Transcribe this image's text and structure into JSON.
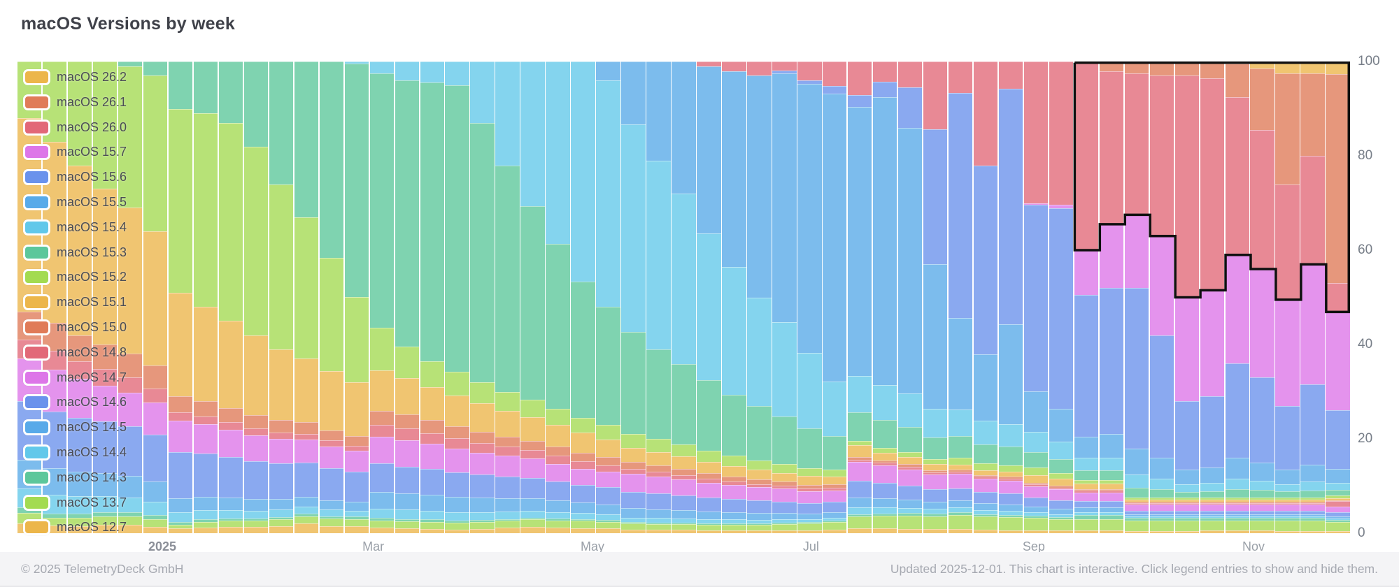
{
  "page": {
    "title": "macOS Versions by week"
  },
  "footer": {
    "copyright": "© 2025 TelemetryDeck GmbH",
    "updated_note": "Updated 2025-12-01. This chart is interactive. Click legend entries to show and hide them."
  },
  "palette": {
    "gold": "#ECB64A",
    "orange": "#E07B58",
    "red": "#E26878",
    "magenta": "#DD76E8",
    "blue": "#6A92EC",
    "blue2": "#58AAE9",
    "cyan": "#62C8EA",
    "teal": "#5CC79B",
    "lime": "#A3DB51"
  },
  "chart_data": {
    "type": "bar",
    "stacking": "percent",
    "title": "macOS Versions by week",
    "x_unit": "week",
    "n_bars": 53,
    "ylim": [
      0,
      100
    ],
    "y_ticks": [
      100,
      80,
      60,
      40,
      20,
      0
    ],
    "y_axis_side": "right",
    "grid": false,
    "legend_position": "overlay-top-left",
    "x_ticks": [
      {
        "label": "2025",
        "pos": 5.76,
        "emphasis": true
      },
      {
        "label": "Mar",
        "pos": 14.15,
        "emphasis": false
      },
      {
        "label": "May",
        "pos": 22.87,
        "emphasis": false
      },
      {
        "label": "Jul",
        "pos": 31.56,
        "emphasis": false
      },
      {
        "label": "Sep",
        "pos": 40.42,
        "emphasis": false
      },
      {
        "label": "Nov",
        "pos": 49.16,
        "emphasis": false
      }
    ],
    "series": [
      {
        "name": "macOS 26.2",
        "color": "gold",
        "values": [
          0,
          0,
          0,
          0,
          0,
          0,
          0,
          0,
          0,
          0,
          0,
          0,
          0,
          0,
          0,
          0,
          0,
          0,
          0,
          0,
          0,
          0,
          0,
          0,
          0,
          0,
          0,
          0,
          0,
          0,
          0,
          0,
          0,
          0,
          0,
          0,
          0,
          0,
          0,
          0,
          0,
          0,
          0,
          0,
          0,
          0,
          0,
          0,
          0.5,
          1.5,
          2.5,
          2.5,
          2.7
        ]
      },
      {
        "name": "macOS 26.1",
        "color": "orange",
        "values": [
          0,
          0,
          0,
          0,
          0,
          0,
          0,
          0,
          0,
          0,
          0,
          0,
          0,
          0,
          0,
          0,
          0,
          0,
          0,
          0,
          0,
          0,
          0,
          0,
          0,
          0,
          0,
          0,
          0,
          0,
          0,
          0,
          0,
          0,
          0,
          0,
          0,
          0,
          0,
          0,
          0,
          0,
          0,
          2,
          2.5,
          3,
          3,
          3.5,
          7,
          13,
          23.5,
          17.5,
          44.4
        ]
      },
      {
        "name": "macOS 26.0",
        "color": "red",
        "values": [
          0,
          0,
          0,
          0,
          0,
          0,
          0,
          0,
          0,
          0,
          0,
          0,
          0,
          0,
          0,
          0,
          0,
          0,
          0,
          0,
          0,
          0,
          0,
          0,
          0,
          0,
          0,
          1,
          2,
          3,
          2,
          4,
          5,
          7,
          4,
          5,
          14,
          6.5,
          22,
          5.5,
          28,
          28.5,
          40,
          32.5,
          30,
          34,
          47,
          45,
          33.5,
          29.5,
          24.5,
          23,
          6
        ]
      },
      {
        "name": "macOS 15.7",
        "color": "magenta",
        "values": [
          0,
          0,
          0,
          0,
          0,
          0,
          0,
          0,
          0,
          0,
          0,
          0,
          0,
          0,
          0,
          0,
          0,
          0,
          0,
          0,
          0,
          0,
          0,
          0,
          0,
          0,
          0,
          0,
          0,
          0,
          0,
          0,
          0,
          0,
          0,
          0,
          0,
          0,
          0,
          0,
          0.3,
          0.7,
          9.5,
          13.5,
          15.5,
          21,
          22,
          22.5,
          23,
          23,
          22.5,
          25.5,
          21.1
        ]
      },
      {
        "name": "macOS 15.6",
        "color": "blue",
        "values": [
          0,
          0,
          0,
          0,
          0,
          0,
          0,
          0,
          0,
          0,
          0,
          0,
          0,
          0,
          0,
          0,
          0,
          0,
          0,
          0,
          0,
          0,
          0,
          0,
          0,
          0,
          0,
          0,
          0,
          0,
          0.5,
          0.8,
          1.5,
          2.5,
          3,
          8,
          28,
          46.5,
          40,
          47,
          37,
          40,
          30,
          31,
          34,
          26,
          14.5,
          15,
          20,
          18,
          13.5,
          17,
          12.5
        ]
      },
      {
        "name": "macOS 15.5",
        "color": "blue2",
        "values": [
          0,
          0,
          0,
          0,
          0,
          0,
          0,
          0,
          0,
          0,
          0,
          0,
          0,
          0,
          0,
          0,
          0,
          0,
          0,
          0,
          0,
          0,
          0,
          4,
          13.4,
          21,
          28,
          35.5,
          41.6,
          47,
          52.8,
          57,
          58.5,
          56.7,
          57,
          52,
          30,
          19,
          14,
          20,
          8,
          6.5,
          4.5,
          5,
          5.5,
          4.5,
          3.2,
          3.4,
          4.4,
          3.9,
          3.1,
          3.6,
          3
        ]
      },
      {
        "name": "macOS 15.4",
        "color": "cyan",
        "values": [
          0,
          0,
          0,
          0,
          0,
          0,
          0,
          0,
          0,
          0,
          0,
          0,
          0,
          0.5,
          2.5,
          4,
          4.5,
          5,
          13,
          22,
          30.7,
          38.7,
          46.6,
          48,
          44,
          40,
          36,
          31,
          27,
          23,
          20,
          16,
          11,
          7.7,
          7,
          6.5,
          6,
          5.5,
          5,
          4.5,
          4,
          3.5,
          2.7,
          2.6,
          2.8,
          2.2,
          1.6,
          1.7,
          2.2,
          1.9,
          1.5,
          1.8,
          1.5
        ]
      },
      {
        "name": "macOS 15.3",
        "color": "teal",
        "values": [
          0,
          0,
          0,
          0,
          1,
          3,
          10,
          11,
          13,
          18,
          26,
          33,
          41.5,
          49.5,
          54,
          56.4,
          59,
          60.8,
          55,
          48,
          41,
          35,
          29,
          25,
          21.5,
          19,
          17,
          15,
          13,
          11.5,
          10,
          8.5,
          6.8,
          6,
          5.5,
          5,
          4.5,
          4.5,
          4,
          3.8,
          3,
          2.8,
          2,
          2.1,
          2.1,
          1.7,
          1.1,
          1.3,
          1.8,
          1.6,
          1.3,
          1.5,
          1.2
        ]
      },
      {
        "name": "macOS 15.2",
        "color": "lime",
        "values": [
          12,
          17,
          22,
          27,
          30,
          33,
          39,
          41,
          42,
          40,
          35,
          30,
          24,
          18,
          9,
          6.7,
          5.5,
          5,
          4.5,
          4,
          3.7,
          3.4,
          3.1,
          3,
          3,
          2.8,
          2.6,
          2.4,
          2.2,
          2,
          1.9,
          1.7,
          1.4,
          1,
          1,
          0.9,
          0.9,
          1.5,
          1.5,
          1.2,
          1.5,
          1.2,
          0.8,
          0.8,
          0.5,
          0.5,
          0.5,
          0.5,
          0.5,
          0.5,
          0.5,
          0.5,
          0.5
        ]
      },
      {
        "name": "macOS 15.1",
        "color": "gold",
        "values": [
          41,
          38.4,
          36,
          33,
          31,
          28.5,
          22,
          20,
          18.5,
          17,
          15,
          13.5,
          12.5,
          11.5,
          8.5,
          7.7,
          7,
          6.5,
          6,
          5.5,
          5,
          4.6,
          4.2,
          3.8,
          3,
          2.8,
          2.6,
          2.4,
          2.2,
          2,
          1.9,
          1.8,
          1.6,
          2.5,
          1.5,
          1.4,
          1.3,
          1,
          1,
          1,
          1.5,
          1.4,
          1.2,
          1.2,
          0.5,
          0.5,
          0.5,
          0.5,
          0.5,
          0.5,
          0.5,
          0.5,
          0.5
        ]
      },
      {
        "name": "macOS 15.0",
        "color": "orange",
        "values": [
          6,
          6,
          5.5,
          5.2,
          5,
          4.8,
          3.4,
          3.2,
          3,
          2.8,
          2.6,
          2.4,
          2.2,
          2,
          3,
          3,
          2.8,
          2.6,
          2.4,
          2.2,
          2,
          1.9,
          1.8,
          1.7,
          1.5,
          1.4,
          1.3,
          1.2,
          1.1,
          1,
          0.9,
          0.8,
          0.7,
          0.5,
          0.5,
          0.5,
          0.5,
          0.4,
          0.4,
          0.4,
          0.3,
          0.3,
          0.3,
          0.3,
          0.2,
          0.2,
          0.2,
          0.2,
          0.2,
          0.2,
          0.2,
          0.2,
          0.2
        ]
      },
      {
        "name": "macOS 14.8",
        "color": "red",
        "values": [
          4,
          4,
          3.8,
          3.5,
          3.2,
          3,
          1.8,
          1.7,
          1.6,
          1.5,
          1.4,
          1.3,
          1.2,
          1.1,
          2.5,
          2.5,
          2.3,
          2.2,
          2,
          1.9,
          1.8,
          1.7,
          1.6,
          1.4,
          1,
          1,
          0.9,
          0.8,
          0.7,
          0.7,
          0.6,
          0.6,
          0.5,
          0.5,
          0.5,
          0.5,
          0.5,
          0.4,
          0.4,
          0.4,
          0.4,
          0.4,
          0.4,
          0.4,
          0.4,
          0.4,
          0.4,
          0.4,
          0.4,
          0.4,
          0.4,
          0.4,
          1.2
        ]
      },
      {
        "name": "macOS 14.7",
        "color": "magenta",
        "values": [
          9,
          8.8,
          8.2,
          7.6,
          7.2,
          6.8,
          6.6,
          6.2,
          5.8,
          5.5,
          5.2,
          4.9,
          4.6,
          4.4,
          5.7,
          5.6,
          5.3,
          5,
          4.7,
          4.4,
          4.1,
          3.8,
          3.5,
          3.3,
          3.8,
          3.6,
          3.4,
          3.2,
          3,
          2.8,
          2.7,
          2.5,
          2.3,
          4,
          3.5,
          3.2,
          3,
          3,
          2.8,
          2.6,
          2.2,
          2.1,
          1.8,
          1.8,
          1.2,
          1.2,
          1.2,
          1.2,
          1.2,
          1.2,
          1.2,
          1.2,
          1.2
        ]
      },
      {
        "name": "macOS 14.6",
        "color": "blue",
        "values": [
          12.5,
          12,
          11.5,
          11,
          10.5,
          10,
          9.8,
          9.2,
          8.6,
          8,
          7.6,
          7.2,
          6.8,
          6.4,
          6,
          5.6,
          5.4,
          5.2,
          4.9,
          4.6,
          4.3,
          4,
          3.7,
          3.6,
          3.5,
          3.3,
          3.1,
          2.9,
          2.7,
          2.6,
          2.4,
          2.2,
          2.1,
          3.5,
          3,
          2.8,
          2.6,
          2.5,
          2.4,
          2.2,
          1.8,
          1.7,
          1.4,
          1.4,
          0.8,
          0.8,
          0.8,
          0.8,
          0.8,
          0.8,
          0.8,
          0.8,
          0.8
        ]
      },
      {
        "name": "macOS 14.5",
        "color": "blue2",
        "values": [
          6,
          5.6,
          5.2,
          4.8,
          4.5,
          4.2,
          3,
          2.8,
          2.6,
          2.4,
          2.2,
          2.1,
          2,
          1.9,
          3.6,
          3.5,
          3.4,
          3.2,
          3,
          2.8,
          2.6,
          2.4,
          2.2,
          2.1,
          2,
          1.9,
          1.8,
          1.7,
          1.6,
          1.5,
          1.4,
          1.3,
          1.2,
          2,
          1.8,
          1.6,
          1.5,
          1.5,
          1.4,
          1.3,
          1.2,
          1.1,
          1,
          1,
          0.5,
          0.5,
          0.5,
          0.5,
          0.5,
          0.5,
          0.5,
          0.5,
          0.5
        ]
      },
      {
        "name": "macOS 14.4",
        "color": "cyan",
        "values": [
          4,
          4,
          3.6,
          3.4,
          3.1,
          2.8,
          2,
          1.9,
          1.8,
          1.7,
          1.6,
          1.5,
          1.4,
          1.3,
          2,
          2,
          1.9,
          1.8,
          1.7,
          1.6,
          1.5,
          1.4,
          1.3,
          1.2,
          1,
          1,
          0.9,
          0.8,
          0.8,
          0.7,
          0.7,
          0.6,
          0.6,
          1.5,
          1.2,
          1,
          1,
          1,
          0.9,
          0.8,
          0.7,
          0.6,
          0.6,
          0.6,
          0.3,
          0.3,
          0.3,
          0.3,
          0.3,
          0.3,
          0.3,
          0.3,
          0.3
        ]
      },
      {
        "name": "macOS 14.3",
        "color": "teal",
        "values": [
          1.2,
          1,
          1,
          1,
          0.9,
          0.9,
          0.6,
          0.6,
          0.5,
          0.5,
          0.5,
          0.5,
          0.5,
          0.5,
          0.5,
          0.5,
          0.5,
          0.5,
          0.5,
          0.4,
          0.4,
          0.4,
          0.4,
          0.4,
          0.3,
          0.3,
          0.3,
          0.3,
          0.3,
          0.3,
          0.3,
          0.3,
          0.3,
          0.5,
          0.5,
          0.5,
          0.5,
          0.5,
          0.5,
          0.4,
          0.4,
          0.4,
          0.8,
          0.8,
          0.5,
          0.5,
          0.5,
          0.5,
          0.5,
          0.5,
          0.5,
          0.5,
          0.5
        ]
      },
      {
        "name": "macOS 13.7",
        "color": "lime",
        "values": [
          2.2,
          1.6,
          1.7,
          1.8,
          1.9,
          1.6,
          0.8,
          1.2,
          1.3,
          1.3,
          1.4,
          1.6,
          1.6,
          1.5,
          1.5,
          1.5,
          1.5,
          1.4,
          1.4,
          1.4,
          1.6,
          1.5,
          1.5,
          1.4,
          1.2,
          1.2,
          1.2,
          1.2,
          1.2,
          1.2,
          1.3,
          1.4,
          1.5,
          2.5,
          2.5,
          2.6,
          2.7,
          3,
          2.8,
          2.6,
          2.4,
          2.3,
          2.4,
          2.4,
          2.2,
          2.2,
          2.2,
          2.2,
          2.2,
          2.2,
          2.2,
          2.2,
          1.8
        ]
      },
      {
        "name": "macOS 12.7",
        "color": "gold",
        "values": [
          2.1,
          1.6,
          1.5,
          1.7,
          1.7,
          1.4,
          1,
          1.2,
          1.3,
          1.3,
          1.5,
          2,
          1.5,
          1.5,
          1.2,
          1,
          0.9,
          0.8,
          0.9,
          1.2,
          1.3,
          1.2,
          1.1,
          1,
          0.8,
          0.7,
          0.7,
          0.6,
          0.6,
          0.6,
          0.6,
          0.6,
          0.7,
          1,
          0.9,
          0.8,
          0.8,
          0.8,
          0.7,
          0.6,
          0.6,
          0.5,
          0.6,
          0.6,
          0.5,
          0.5,
          0.5,
          0.5,
          0.5,
          0.5,
          0.5,
          0.5,
          0.5
        ]
      }
    ],
    "highlight": {
      "description": "black stepped selection outline around the macOS 26.x region",
      "start_index": 42,
      "top_value": 100,
      "bottom_values": [
        60,
        65.5,
        67.5,
        63,
        50,
        51.5,
        59,
        56,
        49.5,
        57,
        46.9
      ],
      "stroke_color": "#101010"
    }
  }
}
